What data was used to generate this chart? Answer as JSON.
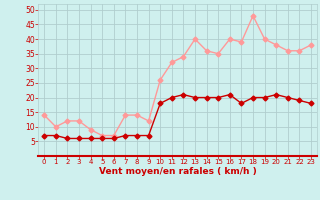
{
  "x": [
    0,
    1,
    2,
    3,
    4,
    5,
    6,
    7,
    8,
    9,
    10,
    11,
    12,
    13,
    14,
    15,
    16,
    17,
    18,
    19,
    20,
    21,
    22,
    23
  ],
  "wind_mean": [
    7,
    7,
    6,
    6,
    6,
    6,
    6,
    7,
    7,
    7,
    18,
    20,
    21,
    20,
    20,
    20,
    21,
    18,
    20,
    20,
    21,
    20,
    19,
    18
  ],
  "wind_gust": [
    14,
    10,
    12,
    12,
    9,
    7,
    7,
    14,
    14,
    12,
    26,
    32,
    34,
    40,
    36,
    35,
    40,
    39,
    48,
    40,
    38,
    36,
    36,
    38
  ],
  "xlabel": "Vent moyen/en rafales ( km/h )",
  "ylim": [
    0,
    52
  ],
  "xlim": [
    -0.5,
    23.5
  ],
  "yticks": [
    5,
    10,
    15,
    20,
    25,
    30,
    35,
    40,
    45,
    50
  ],
  "xticks": [
    0,
    1,
    2,
    3,
    4,
    5,
    6,
    7,
    8,
    9,
    10,
    11,
    12,
    13,
    14,
    15,
    16,
    17,
    18,
    19,
    20,
    21,
    22,
    23
  ],
  "bg_color": "#cff0ee",
  "grid_color": "#b0cece",
  "line_color_mean": "#cc0000",
  "line_color_gust": "#ff9999",
  "marker_size": 2.5,
  "line_width": 1.0
}
